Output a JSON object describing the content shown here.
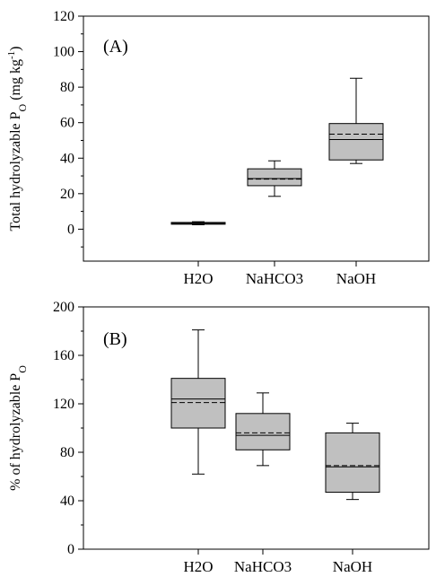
{
  "chart_data": [
    {
      "type": "box",
      "panel_label": "(A)",
      "ylabel_main": "Total hydrolyzable P",
      "ylabel_sub": "O",
      "ylabel_unit_pre": " (mg kg",
      "ylabel_unit_sup": "-1",
      "ylabel_unit_post": ")",
      "ylim": [
        -18,
        120
      ],
      "yticks": [
        0,
        20,
        40,
        60,
        80,
        100,
        120
      ],
      "categories": [
        "H2O",
        "NaHCO3",
        "NaOH"
      ],
      "boxes": [
        {
          "category": "H2O",
          "whisker_low": 2.5,
          "q1": 2.8,
          "median": 3.2,
          "mean": 3.3,
          "q3": 3.8,
          "whisker_high": 4.2
        },
        {
          "category": "NaHCO3",
          "whisker_low": 18.5,
          "q1": 24.5,
          "median": 28.5,
          "mean": 28.2,
          "q3": 34.0,
          "whisker_high": 38.5
        },
        {
          "category": "NaOH",
          "whisker_low": 37.0,
          "q1": 39.0,
          "median": 50.5,
          "mean": 53.5,
          "q3": 59.5,
          "whisker_high": 85.0
        }
      ]
    },
    {
      "type": "box",
      "panel_label": "(B)",
      "ylabel_main": "% of hydrolyzable P",
      "ylabel_sub": "O",
      "ylim": [
        0,
        200
      ],
      "yticks": [
        0,
        40,
        80,
        120,
        160,
        200
      ],
      "categories": [
        "H2O",
        "NaHCO3",
        "NaOH"
      ],
      "boxes": [
        {
          "category": "H2O",
          "whisker_low": 62,
          "q1": 100,
          "median": 124,
          "mean": 121,
          "q3": 141,
          "whisker_high": 181
        },
        {
          "category": "NaHCO3",
          "whisker_low": 69,
          "q1": 82,
          "median": 94,
          "mean": 96,
          "q3": 112,
          "whisker_high": 129
        },
        {
          "category": "NaOH",
          "whisker_low": 41,
          "q1": 47,
          "median": 68,
          "mean": 69,
          "q3": 96,
          "whisker_high": 104
        }
      ]
    }
  ],
  "colors": {
    "box_fill": "#c0c0c0",
    "stroke": "#000000",
    "background": "#ffffff"
  }
}
